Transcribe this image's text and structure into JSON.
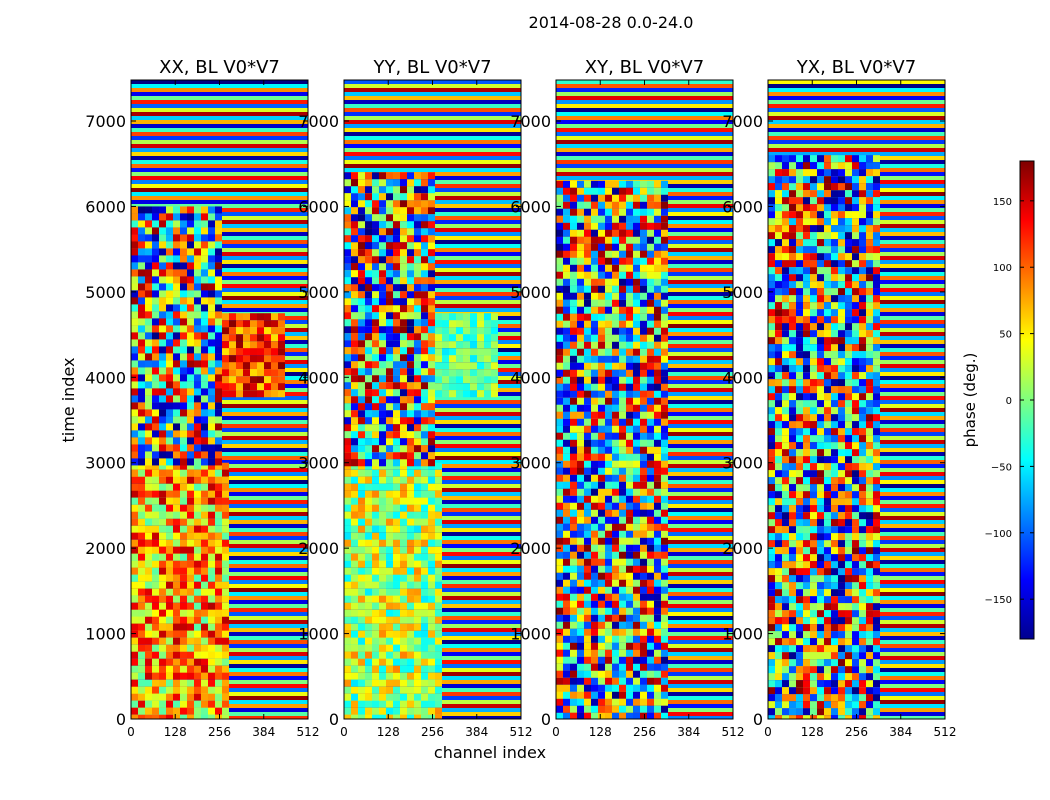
{
  "figure": {
    "suptitle": "2014-08-28 0.0-24.0",
    "ylabel": "time index",
    "xlabel": "channel index"
  },
  "chart_data": {
    "type": "heatmap",
    "x_ticks": [
      0,
      128,
      256,
      384,
      512
    ],
    "x_range": [
      0,
      512
    ],
    "y_ticks": [
      0,
      1000,
      2000,
      3000,
      4000,
      5000,
      6000,
      7000
    ],
    "y_range": [
      0,
      7480
    ],
    "panels": [
      {
        "title": "XX, BL V0*V7",
        "noise_bands": [
          [
            3780,
            4750,
            "hot",
            0.55,
            0.85
          ],
          [
            0,
            3000,
            "warm",
            0.25,
            0.55
          ],
          [
            3000,
            6000,
            "mixed",
            0.3,
            0.5
          ]
        ]
      },
      {
        "title": "YY, BL V0*V7",
        "noise_bands": [
          [
            3780,
            4750,
            "cool",
            0.55,
            0.85
          ],
          [
            0,
            3000,
            "green",
            0.25,
            0.55
          ],
          [
            3000,
            6400,
            "mixed",
            0.3,
            0.5
          ]
        ]
      },
      {
        "title": "XY, BL V0*V7",
        "noise_bands": [
          [
            0,
            6300,
            "mixed",
            0.45,
            0.6
          ]
        ]
      },
      {
        "title": "YX, BL V0*V7",
        "noise_bands": [
          [
            0,
            6600,
            "mixed",
            0.45,
            0.6
          ]
        ]
      }
    ],
    "colorbar": {
      "label": "phase (deg.)",
      "range": [
        -180,
        180
      ],
      "ticks": [
        150,
        100,
        50,
        0,
        -50,
        -100,
        -150
      ],
      "tick_labels": [
        "150",
        "100",
        "50",
        "0",
        "−50",
        "−100",
        "−150"
      ],
      "colormap": "jet"
    }
  }
}
